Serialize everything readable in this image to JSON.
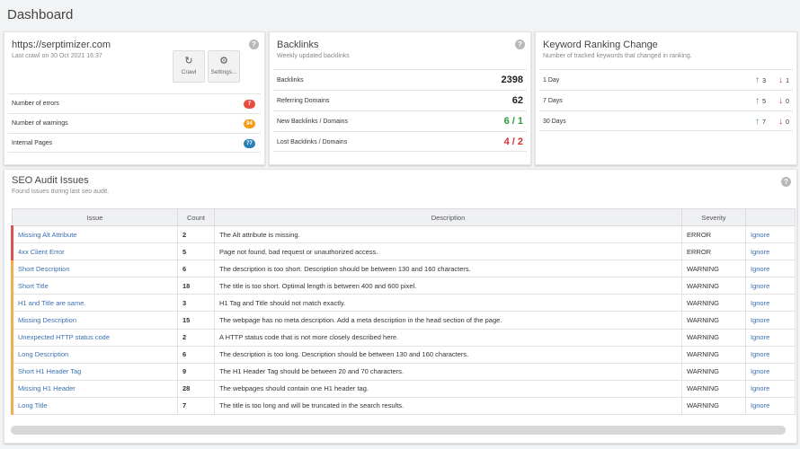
{
  "page": {
    "title": "Dashboard"
  },
  "site": {
    "url": "https://serptimizer.com",
    "last_crawl": "Last crawl on 30 Oct 2021 16:37",
    "crawl_label": "Crawl",
    "settings_label": "Settings...",
    "stats": [
      {
        "label": "Number of errors",
        "value": "7",
        "color": "#e74c3c"
      },
      {
        "label": "Number of warnings",
        "value": "94",
        "color": "#f39c12"
      },
      {
        "label": "Internal Pages",
        "value": "77",
        "color": "#2980b9"
      }
    ]
  },
  "backlinks": {
    "title": "Backlinks",
    "subtitle": "Weekly updated backlinks",
    "rows": [
      {
        "label": "Backlinks",
        "value": "2398",
        "color": "#222222"
      },
      {
        "label": "Referring Domains",
        "value": "62",
        "color": "#222222"
      },
      {
        "label": "New Backlinks / Domains",
        "value": "6 / 1",
        "color": "#2e9b3d"
      },
      {
        "label": "Lost Backlinks / Domains",
        "value": "4 / 2",
        "color": "#d32f2f"
      }
    ]
  },
  "keywords": {
    "title": "Keyword Ranking Change",
    "subtitle": "Number of tracked keywords that changed in ranking.",
    "rows": [
      {
        "label": "1 Day",
        "up": "3",
        "down": "1"
      },
      {
        "label": "7 Days",
        "up": "5",
        "down": "0"
      },
      {
        "label": "30 Days",
        "up": "7",
        "down": "0"
      }
    ]
  },
  "audit": {
    "title": "SEO Audit Issues",
    "subtitle": "Found issues during last seo audit.",
    "columns": [
      "Issue",
      "Count",
      "Description",
      "Severity",
      ""
    ],
    "ignore_label": "Ignore",
    "rows": [
      {
        "issue": "Missing Alt Attribute",
        "count": "2",
        "description": "The Alt attribute is missing.",
        "severity": "ERROR"
      },
      {
        "issue": "4xx Client Error",
        "count": "5",
        "description": "Page not found, bad request or unauthorized access.",
        "severity": "ERROR"
      },
      {
        "issue": "Short Description",
        "count": "6",
        "description": "The description is too short. Description should be between 130 and 160 characters.",
        "severity": "WARNING"
      },
      {
        "issue": "Short Title",
        "count": "18",
        "description": "The title is too short. Optimal length is between 400 and 600 pixel.",
        "severity": "WARNING"
      },
      {
        "issue": "H1 and Title are same.",
        "count": "3",
        "description": "H1 Tag and Title should not match exactly.",
        "severity": "WARNING"
      },
      {
        "issue": "Missing Description",
        "count": "15",
        "description": "The webpage has no meta description. Add a meta description in the head section of the page.",
        "severity": "WARNING"
      },
      {
        "issue": "Unexpected HTTP status code",
        "count": "2",
        "description": "A HTTP status code that is not more closely described here.",
        "severity": "WARNING"
      },
      {
        "issue": "Long Description",
        "count": "6",
        "description": "The description is too long. Description should be between 130 and 160 characters.",
        "severity": "WARNING"
      },
      {
        "issue": "Short H1 Header Tag",
        "count": "9",
        "description": "The H1 Header Tag should be between 20 and 70 characters.",
        "severity": "WARNING"
      },
      {
        "issue": "Missing H1 Header",
        "count": "28",
        "description": "The webpages should contain one H1 header tag.",
        "severity": "WARNING"
      },
      {
        "issue": "Long Title",
        "count": "7",
        "description": "The title is too long and will be truncated in the search results.",
        "severity": "WARNING"
      }
    ]
  }
}
